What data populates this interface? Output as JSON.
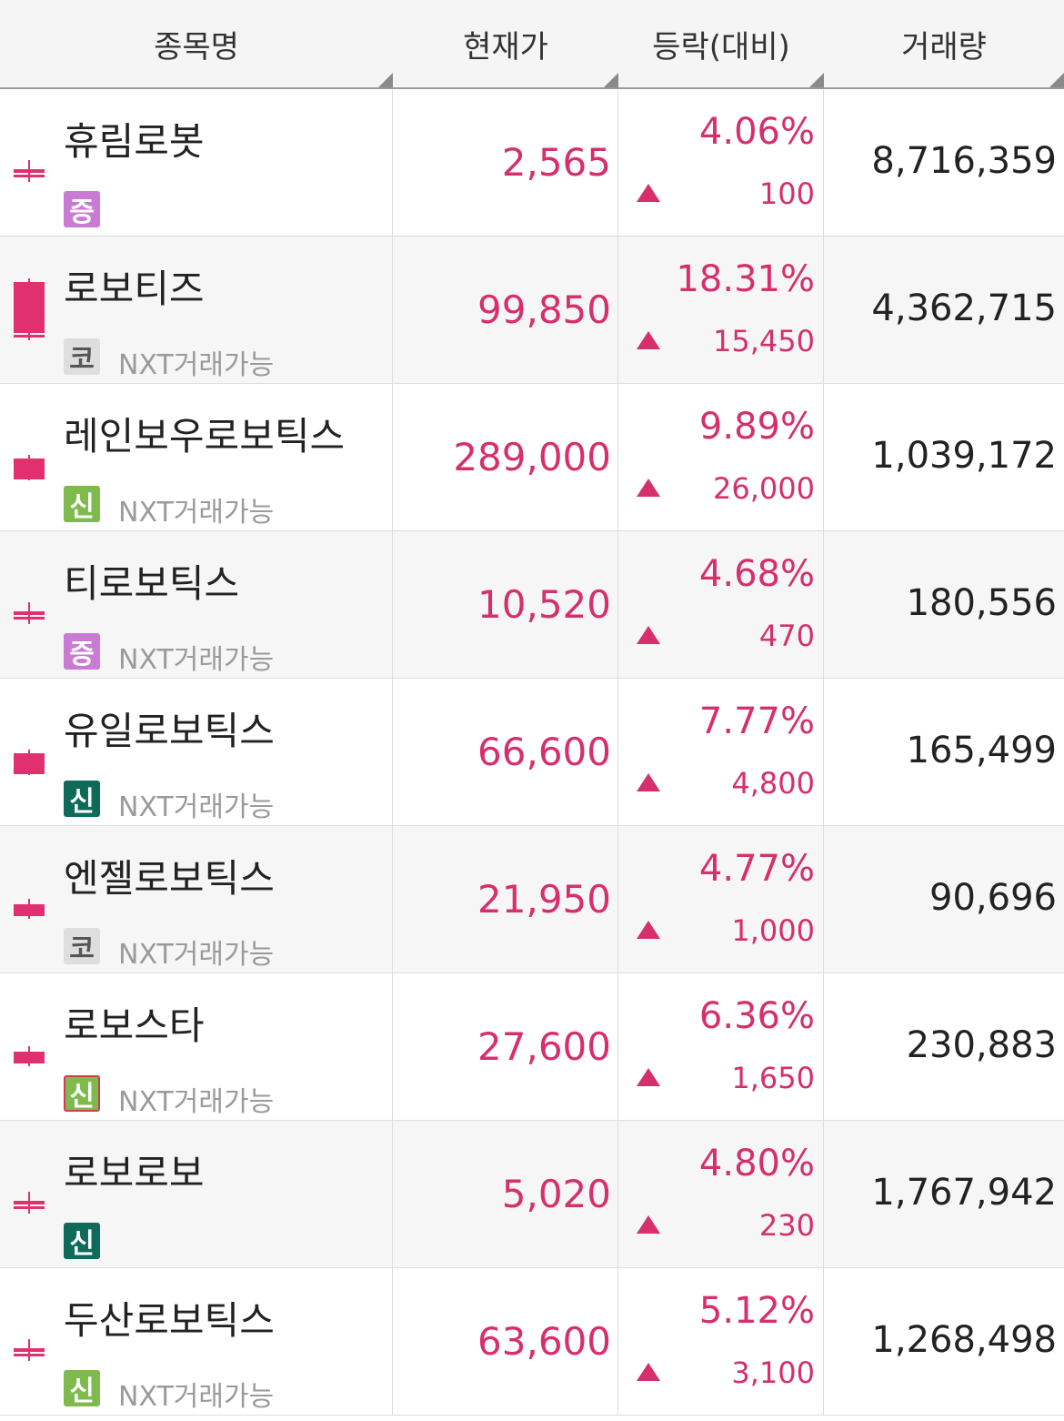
{
  "colors": {
    "up": "#d62f6b",
    "header_bg": "#f5f5f5",
    "alt_row_bg": "#f6f6f6",
    "badge_jeung": "#c97bd4",
    "badge_ko": "#dedede",
    "badge_sin_green": "#7fba4d",
    "badge_sin_dark": "#0e6b5a"
  },
  "header": {
    "name": "종목명",
    "price": "현재가",
    "change": "등락(대비)",
    "volume": "거래량"
  },
  "rows": [
    {
      "name": "휴림로봇",
      "badge": "증",
      "badge_style": "jeung",
      "nxt": "",
      "price": "2,565",
      "rate": "4.06%",
      "diff": "100",
      "volume": "8,716,359",
      "candle": "small-cross"
    },
    {
      "name": "로보티즈",
      "badge": "코",
      "badge_style": "ko",
      "nxt": "NXT거래가능",
      "price": "99,850",
      "rate": "18.31%",
      "diff": "15,450",
      "volume": "4,362,715",
      "candle": "tall"
    },
    {
      "name": "레인보우로보틱스",
      "badge": "신",
      "badge_style": "sin-green",
      "nxt": "NXT거래가능",
      "price": "289,000",
      "rate": "9.89%",
      "diff": "26,000",
      "volume": "1,039,172",
      "candle": "medium"
    },
    {
      "name": "티로보틱스",
      "badge": "증",
      "badge_style": "jeung",
      "nxt": "NXT거래가능",
      "price": "10,520",
      "rate": "4.68%",
      "diff": "470",
      "volume": "180,556",
      "candle": "small-cross"
    },
    {
      "name": "유일로보틱스",
      "badge": "신",
      "badge_style": "sin-dark",
      "nxt": "NXT거래가능",
      "price": "66,600",
      "rate": "7.77%",
      "diff": "4,800",
      "volume": "165,499",
      "candle": "medium"
    },
    {
      "name": "엔젤로보틱스",
      "badge": "코",
      "badge_style": "ko",
      "nxt": "NXT거래가능",
      "price": "21,950",
      "rate": "4.77%",
      "diff": "1,000",
      "volume": "90,696",
      "candle": "small"
    },
    {
      "name": "로보스타",
      "badge": "신",
      "badge_style": "sin-outline",
      "nxt": "NXT거래가능",
      "price": "27,600",
      "rate": "6.36%",
      "diff": "1,650",
      "volume": "230,883",
      "candle": "small"
    },
    {
      "name": "로보로보",
      "badge": "신",
      "badge_style": "sin-dark",
      "nxt": "",
      "price": "5,020",
      "rate": "4.80%",
      "diff": "230",
      "volume": "1,767,942",
      "candle": "small-cross"
    },
    {
      "name": "두산로보틱스",
      "badge": "신",
      "badge_style": "sin-green",
      "nxt": "NXT거래가능",
      "price": "63,600",
      "rate": "5.12%",
      "diff": "3,100",
      "volume": "1,268,498",
      "candle": "small-cross"
    }
  ]
}
